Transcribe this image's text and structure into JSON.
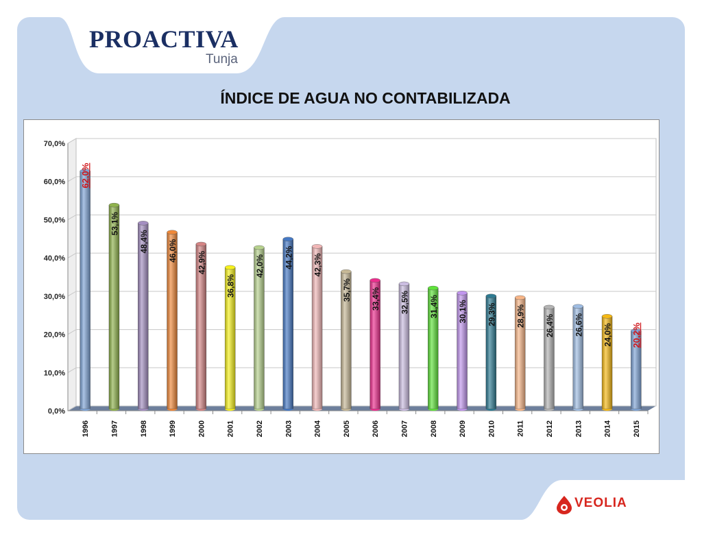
{
  "header": {
    "brand": "PROACTIVA",
    "subbrand": "Tunja"
  },
  "title": "ÍNDICE DE AGUA NO CONTABILIZADA",
  "footer": {
    "brand": "VEOLIA"
  },
  "chart_data": {
    "type": "bar",
    "title": "ÍNDICE DE AGUA NO CONTABILIZADA",
    "categories": [
      "1996",
      "1997",
      "1998",
      "1999",
      "2000",
      "2001",
      "2002",
      "2003",
      "2004",
      "2005",
      "2006",
      "2007",
      "2008",
      "2009",
      "2010",
      "2011",
      "2012",
      "2013",
      "2014",
      "2015"
    ],
    "values": [
      62.0,
      53.1,
      48.4,
      46.0,
      42.9,
      36.8,
      42.0,
      44.2,
      42.3,
      35.7,
      33.4,
      32.5,
      31.4,
      30.1,
      29.3,
      28.9,
      26.4,
      26.6,
      24.0,
      20.2
    ],
    "value_labels": [
      "62,0%",
      "53,1%",
      "48,4%",
      "46,0%",
      "42,9%",
      "36,8%",
      "42,0%",
      "44,2%",
      "42,3%",
      "35,7%",
      "33,4%",
      "32,5%",
      "31,4%",
      "30,1%",
      "29,3%",
      "28,9%",
      "26,4%",
      "26,6%",
      "24,0%",
      "20,2%"
    ],
    "yticks": [
      "0,0%",
      "10,0%",
      "20,0%",
      "30,0%",
      "40,0%",
      "50,0%",
      "60,0%",
      "70,0%"
    ],
    "ylim": [
      0,
      70
    ],
    "xlabel": "",
    "ylabel": "",
    "grid": true,
    "legend": "none",
    "colors": [
      "#7fa4d6",
      "#8fb24c",
      "#a48fc1",
      "#f08838",
      "#d48484",
      "#f7f21c",
      "#b7d28e",
      "#4679c4",
      "#f1b7b7",
      "#c7b997",
      "#ed2e8e",
      "#cbbde1",
      "#5fe33a",
      "#c196ee",
      "#2e7b92",
      "#f8b688",
      "#b4b4b4",
      "#9fbde3",
      "#f6b915",
      "#7fa4d6"
    ],
    "highlight_color": "#d0161b"
  }
}
